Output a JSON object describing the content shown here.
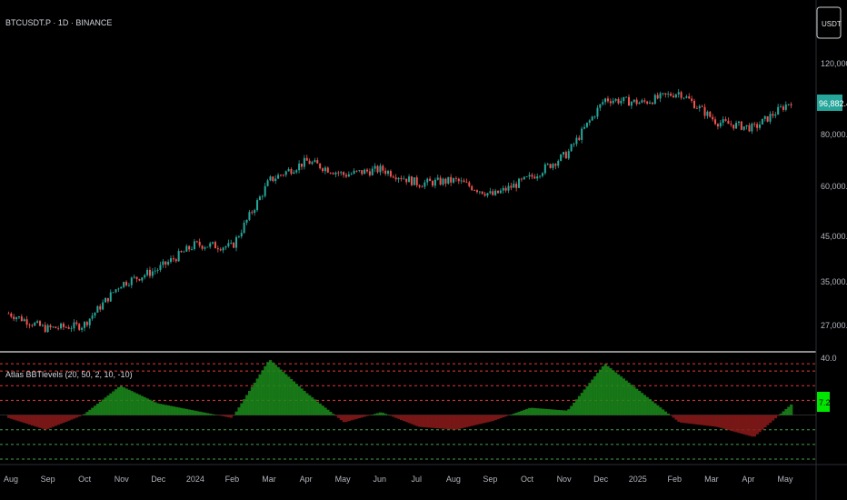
{
  "header": {
    "symbol_title": "BTCUSDT.P · 1D · BINANCE",
    "currency_button": "USDT"
  },
  "indicator": {
    "label": "Atlas BBTlevels (20, 50, 2, 10, -10)",
    "current_value": "7.2"
  },
  "price_axis": {
    "ticks": [
      "120,000.0",
      "80,000.0",
      "60,000.0",
      "45,000.0",
      "35,000.0",
      "27,000.0"
    ],
    "last_price": "96,882.4"
  },
  "osc_axis": {
    "top_tick": "40.0"
  },
  "time_axis": {
    "ticks": [
      "Aug",
      "Sep",
      "Oct",
      "Nov",
      "Dec",
      "2024",
      "Feb",
      "Mar",
      "Apr",
      "May",
      "Jun",
      "Jul",
      "Aug",
      "Sep",
      "Oct",
      "Nov",
      "Dec",
      "2025",
      "Feb",
      "Mar",
      "Apr",
      "May"
    ]
  },
  "colors": {
    "up": "#26a69a",
    "down": "#ef5350",
    "osc_pos": "#1b8a1b",
    "osc_neg": "#8b1a1a",
    "level_red": "#e53935",
    "level_green": "#43a047",
    "last_price_bg": "#26a69a",
    "current_value_bg": "#00e600"
  },
  "chart_data": [
    {
      "type": "candlestick",
      "title": "BTCUSDT.P · 1D · BINANCE",
      "y_scale": "log",
      "series": [
        {
          "name": "BTCUSDT.P",
          "date": [
            "2023-08",
            "2023-09",
            "2023-10",
            "2023-11",
            "2023-12",
            "2024-01",
            "2024-02",
            "2024-03",
            "2024-04",
            "2024-05",
            "2024-06",
            "2024-07",
            "2024-08",
            "2024-09",
            "2024-10",
            "2024-11",
            "2024-12",
            "2025-01",
            "2025-02",
            "2025-03",
            "2025-04",
            "2025-05"
          ],
          "close": [
            29000,
            26500,
            27000,
            34500,
            37500,
            43000,
            42500,
            62000,
            69000,
            64000,
            66000,
            61000,
            62000,
            57000,
            63000,
            72000,
            98000,
            96000,
            102000,
            86000,
            83000,
            96882
          ]
        }
      ]
    },
    {
      "type": "area",
      "title": "Atlas BBTlevels (20, 50, 2, 10, -10)",
      "ylim": [
        -30,
        40
      ],
      "levels": [
        35,
        30,
        20,
        10,
        -10,
        -20,
        -30
      ],
      "series": [
        {
          "name": "BBTlevels",
          "date": [
            "2023-08",
            "2023-09",
            "2023-10",
            "2023-11",
            "2023-12",
            "2024-01",
            "2024-02",
            "2024-03",
            "2024-04",
            "2024-05",
            "2024-06",
            "2024-07",
            "2024-08",
            "2024-09",
            "2024-10",
            "2024-11",
            "2024-12",
            "2025-01",
            "2025-02",
            "2025-03",
            "2025-04",
            "2025-05"
          ],
          "values": [
            -2,
            -10,
            0,
            20,
            8,
            3,
            -2,
            38,
            15,
            -5,
            2,
            -8,
            -10,
            -4,
            5,
            3,
            35,
            15,
            -5,
            -8,
            -15,
            7.2
          ]
        }
      ]
    }
  ]
}
